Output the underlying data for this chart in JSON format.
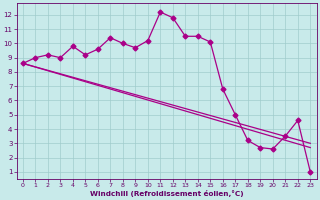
{
  "xlabel": "Windchill (Refroidissement éolien,°C)",
  "bg_color": "#c8eaea",
  "grid_color": "#a0cccc",
  "line_color": "#aa0088",
  "x_ticks": [
    0,
    1,
    2,
    3,
    4,
    5,
    6,
    7,
    8,
    9,
    10,
    11,
    12,
    13,
    14,
    15,
    16,
    17,
    18,
    19,
    20,
    21,
    22,
    23
  ],
  "y_ticks": [
    1,
    2,
    3,
    4,
    5,
    6,
    7,
    8,
    9,
    10,
    11,
    12
  ],
  "ylim": [
    0.5,
    12.8
  ],
  "xlim": [
    -0.5,
    23.5
  ],
  "series": [
    {
      "x": [
        0,
        1,
        2,
        3,
        4,
        5,
        6,
        7,
        8,
        9,
        10,
        11,
        12,
        13,
        14,
        15,
        16,
        17,
        18,
        19,
        20,
        21,
        22,
        23
      ],
      "y": [
        8.6,
        9.0,
        9.2,
        9.0,
        9.8,
        9.2,
        9.6,
        10.4,
        10.0,
        9.7,
        10.2,
        12.2,
        11.8,
        10.5,
        10.5,
        10.1,
        6.8,
        5.0,
        3.2,
        2.7,
        2.6,
        3.5,
        4.6,
        1.0
      ],
      "marker": "D",
      "markersize": 2.5,
      "lw": 0.9
    },
    {
      "x": [
        0,
        23
      ],
      "y": [
        8.6,
        3.0
      ],
      "marker": null,
      "markersize": 0,
      "lw": 0.9
    },
    {
      "x": [
        0,
        23
      ],
      "y": [
        8.6,
        2.7
      ],
      "marker": null,
      "markersize": 0,
      "lw": 0.9
    }
  ]
}
